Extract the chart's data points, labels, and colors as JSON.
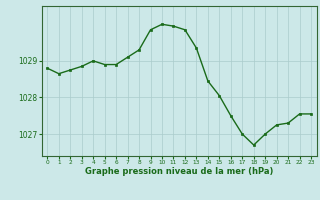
{
  "x": [
    0,
    1,
    2,
    3,
    4,
    5,
    6,
    7,
    8,
    9,
    10,
    11,
    12,
    13,
    14,
    15,
    16,
    17,
    18,
    19,
    20,
    21,
    22,
    23
  ],
  "y": [
    1028.8,
    1028.65,
    1028.75,
    1028.85,
    1029.0,
    1028.9,
    1028.9,
    1029.1,
    1029.3,
    1029.85,
    1030.0,
    1029.95,
    1029.85,
    1029.35,
    1028.45,
    1028.05,
    1027.5,
    1027.0,
    1026.7,
    1027.0,
    1027.25,
    1027.3,
    1027.55,
    1027.55
  ],
  "line_color": "#1a6b1a",
  "marker_color": "#1a6b1a",
  "bg_color": "#cce8e8",
  "grid_color": "#aacccc",
  "axis_label_color": "#1a6b1a",
  "xlabel": "Graphe pression niveau de la mer (hPa)",
  "ylim_min": 1026.4,
  "ylim_max": 1030.5,
  "xlim_min": -0.5,
  "xlim_max": 23.5,
  "yticks": [
    1027,
    1028,
    1029
  ],
  "xticks": [
    0,
    1,
    2,
    3,
    4,
    5,
    6,
    7,
    8,
    9,
    10,
    11,
    12,
    13,
    14,
    15,
    16,
    17,
    18,
    19,
    20,
    21,
    22,
    23
  ]
}
